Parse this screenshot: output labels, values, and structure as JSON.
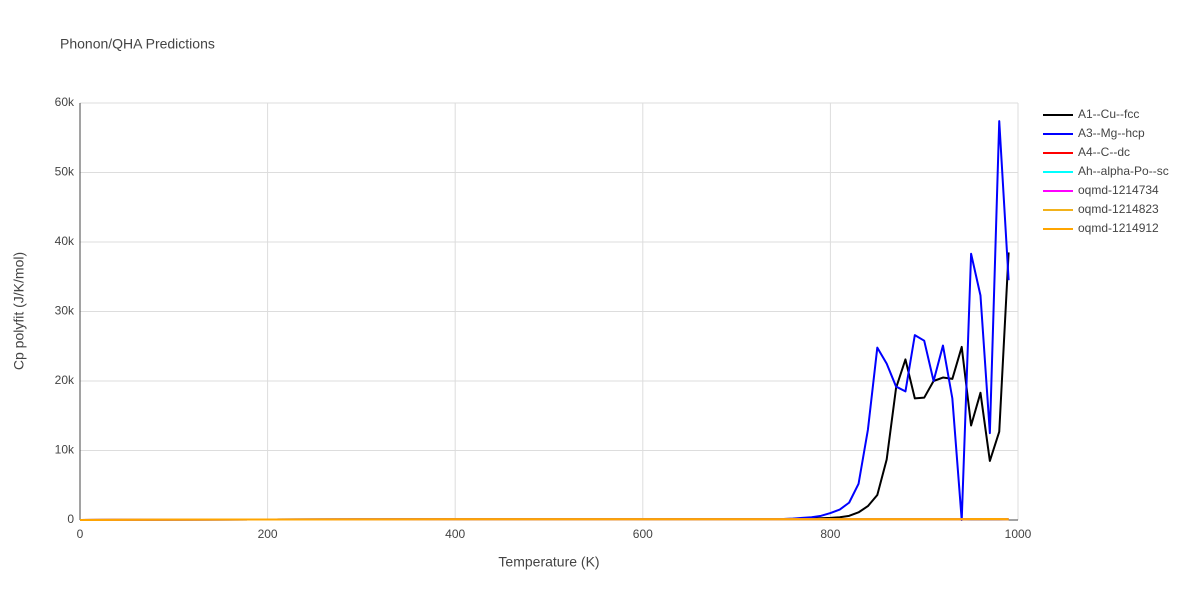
{
  "chart_data": {
    "type": "line",
    "title": "Phonon/QHA Predictions",
    "x_label": "Temperature (K)",
    "y_label": "Cp polyfit (J/K/mol)",
    "x": [
      0,
      100,
      200,
      300,
      400,
      500,
      600,
      700,
      750,
      760,
      770,
      780,
      790,
      800,
      810,
      820,
      830,
      840,
      850,
      860,
      870,
      880,
      890,
      900,
      910,
      920,
      930,
      940,
      950,
      960,
      970,
      980,
      990
    ],
    "series": [
      {
        "name": "A1--Cu--fcc",
        "color": "#000000",
        "values": [
          0,
          50,
          80,
          90,
          100,
          100,
          100,
          120,
          150,
          170,
          200,
          230,
          260,
          300,
          400,
          600,
          1100,
          2000,
          3600,
          8700,
          19000,
          23100,
          17500,
          17600,
          20000,
          20500,
          20300,
          24900,
          13600,
          18300,
          8500,
          12700,
          38500
        ]
      },
      {
        "name": "A3--Mg--hcp",
        "color": "#0000ff",
        "values": [
          0,
          50,
          80,
          90,
          100,
          100,
          100,
          120,
          150,
          200,
          300,
          400,
          600,
          1000,
          1500,
          2500,
          5200,
          13000,
          24800,
          22500,
          19200,
          18500,
          26600,
          25800,
          20000,
          25100,
          17500,
          0,
          38300,
          32300,
          12500,
          57400,
          34500
        ]
      },
      {
        "name": "A4--C--dc",
        "color": "#ff0000",
        "values": [
          0,
          60,
          80,
          90,
          100,
          100,
          100,
          110,
          110,
          110,
          110,
          110,
          110,
          110,
          110,
          110,
          110,
          110,
          110,
          110,
          110,
          110,
          110,
          110,
          110,
          110,
          110,
          110,
          120,
          130,
          150,
          120,
          100
        ]
      },
      {
        "name": "Ah--alpha-Po--sc",
        "color": "#00ffff",
        "values": [
          0,
          60,
          80,
          90,
          100,
          100,
          100,
          110,
          110,
          110,
          110,
          110,
          110,
          110,
          110,
          110,
          110,
          110,
          110,
          110,
          110,
          110,
          110,
          110,
          110,
          110,
          110,
          110,
          120,
          130,
          150,
          120,
          100
        ]
      },
      {
        "name": "oqmd-1214734",
        "color": "#ff00ff",
        "values": [
          0,
          60,
          80,
          90,
          100,
          100,
          100,
          110,
          110,
          110,
          110,
          110,
          110,
          110,
          110,
          110,
          110,
          110,
          110,
          110,
          110,
          110,
          110,
          110,
          110,
          110,
          110,
          110,
          120,
          130,
          150,
          120,
          100
        ]
      },
      {
        "name": "oqmd-1214823",
        "color": "#f2b21b",
        "values": [
          0,
          60,
          80,
          90,
          100,
          100,
          100,
          110,
          110,
          110,
          110,
          110,
          110,
          110,
          110,
          110,
          110,
          110,
          110,
          110,
          110,
          110,
          110,
          110,
          110,
          110,
          110,
          110,
          120,
          130,
          150,
          120,
          100
        ]
      },
      {
        "name": "oqmd-1214912",
        "color": "#ffa500",
        "values": [
          0,
          60,
          80,
          90,
          100,
          100,
          100,
          110,
          110,
          110,
          110,
          110,
          110,
          110,
          110,
          110,
          110,
          110,
          110,
          110,
          110,
          110,
          110,
          110,
          110,
          110,
          110,
          110,
          120,
          130,
          150,
          120,
          100
        ]
      }
    ],
    "xlim": [
      0,
      1000
    ],
    "xticks": [
      0,
      200,
      400,
      600,
      800,
      1000
    ],
    "ylim": [
      0,
      60000
    ],
    "yticks": [
      0,
      {
        "value": 10000,
        "label": "10k"
      },
      {
        "value": 20000,
        "label": "20k"
      },
      {
        "value": 30000,
        "label": "30k"
      },
      {
        "value": 40000,
        "label": "40k"
      },
      {
        "value": 50000,
        "label": "50k"
      },
      {
        "value": 60000,
        "label": "60k"
      }
    ],
    "grid": true,
    "legend": "right"
  }
}
